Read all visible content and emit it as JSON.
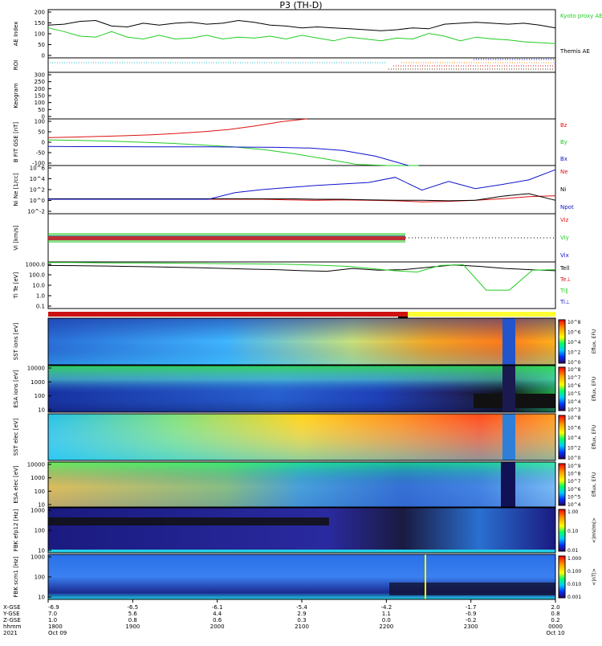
{
  "title": "P3 (TH-D)",
  "colors": {
    "black": "#000000",
    "green": "#22cc22",
    "red": "#dd1111",
    "blue": "#1111cc",
    "roi_bar_red": "#cc1111",
    "roi_bar_yellow": "#ffff33"
  },
  "chart_data": [
    {
      "type": "line",
      "panel": "ae",
      "ylabel": "AE Index",
      "yticks": [
        "200",
        "150",
        "100",
        "50",
        "0"
      ],
      "legend": [
        "Kyoto proxy AE",
        "Themis AE"
      ],
      "series": [
        {
          "name": "Themis AE",
          "values": [
            125,
            130,
            145,
            150,
            120,
            115,
            135,
            125,
            135,
            140,
            130,
            135,
            150,
            140,
            125,
            120,
            110,
            115,
            110,
            105,
            100,
            95,
            100,
            110,
            105,
            130,
            135,
            140,
            135,
            130,
            135,
            125,
            110
          ]
        },
        {
          "name": "Kyoto proxy AE",
          "values": [
            110,
            90,
            65,
            60,
            90,
            60,
            50,
            70,
            50,
            55,
            70,
            50,
            60,
            55,
            65,
            50,
            70,
            55,
            40,
            60,
            50,
            40,
            55,
            50,
            80,
            65,
            40,
            60,
            50,
            45,
            35,
            30,
            25
          ]
        }
      ]
    },
    {
      "type": "line",
      "panel": "roi",
      "ylabel": "ROI"
    },
    {
      "type": "line",
      "panel": "keogram",
      "ylabel": "Keogram",
      "yticks": [
        "300",
        "250",
        "200",
        "150",
        "100",
        "50",
        "0"
      ]
    },
    {
      "type": "line",
      "panel": "bfield",
      "ylabel": "B FIT GSE [nT]",
      "yticks": [
        "100",
        "50",
        "0",
        "-50",
        "-100"
      ],
      "legend": [
        "Bz",
        "By",
        "Bx"
      ],
      "series": [
        {
          "name": "Bz",
          "values": [
            20,
            22,
            25,
            28,
            32,
            38,
            45,
            55,
            70,
            88,
            100
          ]
        },
        {
          "name": "By",
          "values": [
            10,
            8,
            5,
            0,
            -5,
            -12,
            -20,
            -32,
            -50,
            -72,
            -95,
            -100,
            -100
          ]
        },
        {
          "name": "Bx",
          "values": [
            -18,
            -19,
            -19,
            -20,
            -20,
            -20,
            -21,
            -22,
            -25,
            -35,
            -60,
            -100
          ]
        }
      ]
    },
    {
      "type": "line",
      "panel": "density",
      "ylabel": "Ni Ne [1/cc]",
      "yticks": [
        "10^6",
        "10^4",
        "10^2",
        "10^0",
        "10^-2"
      ],
      "legend": [
        "Ne",
        "Ni",
        "Npot"
      ],
      "series": [
        {
          "name": "Ne",
          "values": [
            -0.3,
            -0.3,
            -0.3,
            -0.3,
            -0.3,
            -0.3,
            -0.3,
            -0.3,
            -0.3,
            -0.4,
            -0.5,
            -0.4,
            -0.5,
            -0.6,
            -0.8,
            -0.7,
            -0.5,
            -0.2,
            0.2,
            0.4
          ]
        },
        {
          "name": "Ni",
          "values": [
            -0.2,
            -0.2,
            -0.2,
            -0.2,
            -0.2,
            -0.2,
            -0.2,
            -0.2,
            -0.2,
            -0.2,
            -0.3,
            -0.3,
            -0.4,
            -0.5,
            -0.5,
            -0.6,
            -0.5,
            0.3,
            0.8,
            -0.5
          ]
        },
        {
          "name": "Npot",
          "values": [
            -0.3,
            -0.3,
            -0.3,
            -0.3,
            -0.3,
            -0.3,
            -0.3,
            1.0,
            1.6,
            2.0,
            2.4,
            2.7,
            3.0,
            4.0,
            1.5,
            3.2,
            1.8,
            2.6,
            3.5,
            5.5
          ]
        }
      ]
    },
    {
      "type": "line",
      "panel": "velocity",
      "ylabel": "Vi [km/s]",
      "legend": [
        "Viz",
        "Viy",
        "Vix"
      ]
    },
    {
      "type": "line",
      "panel": "temperature",
      "ylabel": "Ti Te [eV]",
      "yticks": [
        "1000.0",
        "100.0",
        "10.0",
        "1.0",
        "0.1"
      ],
      "legend": [
        "Tell",
        "Te⊥",
        "Ti∥",
        "Ti⊥"
      ],
      "series": [
        {
          "name": "Tell",
          "values": [
            2500,
            2400,
            2200,
            2000,
            1800,
            1600,
            1400,
            1200,
            1000,
            900,
            700,
            600,
            1200,
            800,
            900,
            1600,
            2800,
            2000,
            1200,
            900,
            700
          ]
        },
        {
          "name": "Ti∥",
          "values": [
            5000,
            5000,
            4800,
            4700,
            4600,
            4400,
            4200,
            4000,
            3800,
            3600,
            3400,
            3000,
            2500,
            2000,
            1200,
            700,
            500,
            2500,
            3000,
            6,
            6,
            800,
            900
          ]
        }
      ]
    },
    {
      "type": "heatmap",
      "panel": "sst_ion",
      "ylabel": "SST ions [eV]",
      "colorbar_label": "Eflux, EFU",
      "colorbar_ticks": [
        "10^8",
        "10^6",
        "10^4",
        "10^2",
        "10^0"
      ]
    },
    {
      "type": "heatmap",
      "panel": "esa_ion",
      "ylabel": "ESA ions [eV]",
      "yticks": [
        "10000",
        "1000",
        "100",
        "10"
      ],
      "colorbar_label": "Eflux, EFU",
      "colorbar_ticks": [
        "10^8",
        "10^7",
        "10^6",
        "10^5",
        "10^4",
        "10^3"
      ]
    },
    {
      "type": "heatmap",
      "panel": "sst_elec",
      "ylabel": "SST elec [eV]",
      "colorbar_label": "Eflux, EFU",
      "colorbar_ticks": [
        "10^8",
        "10^6",
        "10^4",
        "10^2",
        "10^0"
      ]
    },
    {
      "type": "heatmap",
      "panel": "esa_elec",
      "ylabel": "ESA elec [eV]",
      "yticks": [
        "10000",
        "1000",
        "100",
        "10"
      ],
      "colorbar_label": "Eflux, EFU",
      "colorbar_ticks": [
        "10^9",
        "10^8",
        "10^7",
        "10^6",
        "10^5",
        "10^4"
      ]
    },
    {
      "type": "heatmap",
      "panel": "fbk_e",
      "ylabel": "FBK efp12 [Hz]",
      "yticks": [
        "1000",
        "100",
        "10"
      ],
      "colorbar_label": "<|mV/m|>",
      "colorbar_ticks": [
        "1.00",
        "0.10",
        "0.01"
      ]
    },
    {
      "type": "heatmap",
      "panel": "fbk_b",
      "ylabel": "FBK scm1 [Hz]",
      "yticks": [
        "1000",
        "100",
        "10"
      ],
      "colorbar_label": "<|nT|>",
      "colorbar_ticks": [
        "1.000",
        "0.100",
        "0.010",
        "0.001"
      ]
    }
  ],
  "xaxis": {
    "row_labels": [
      "X-GSE",
      "Y-GSE",
      "Z-GSE",
      "hhmm",
      "2021"
    ],
    "columns": [
      {
        "x": "-6.9",
        "y": "7.0",
        "z": "1.0",
        "time": "1800",
        "date": "Oct 09"
      },
      {
        "x": "-6.5",
        "y": "5.6",
        "z": "0.8",
        "time": "1900",
        "date": ""
      },
      {
        "x": "-6.1",
        "y": "4.4",
        "z": "0.6",
        "time": "2000",
        "date": ""
      },
      {
        "x": "-5.4",
        "y": "2.9",
        "z": "0.3",
        "time": "2100",
        "date": ""
      },
      {
        "x": "-4.2",
        "y": "1.1",
        "z": "0.0",
        "time": "2200",
        "date": ""
      },
      {
        "x": "-1.7",
        "y": "-0.9",
        "z": "-0.2",
        "time": "2300",
        "date": ""
      },
      {
        "x": "2.0",
        "y": "0.8",
        "z": "0.2",
        "time": "0000",
        "date": "Oct 10"
      }
    ]
  }
}
